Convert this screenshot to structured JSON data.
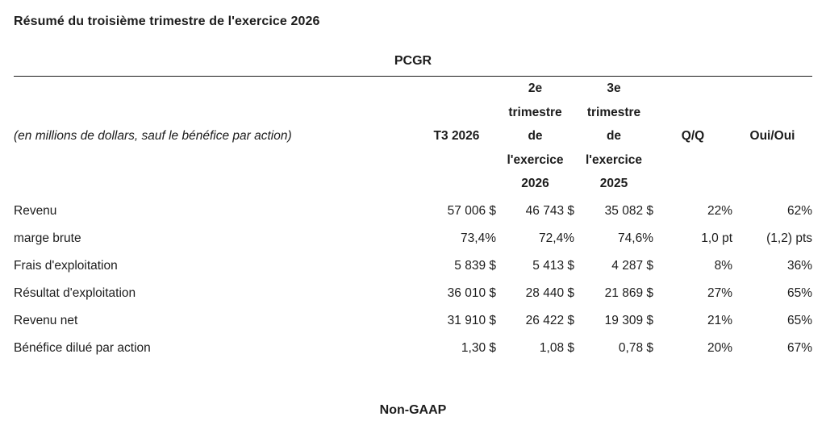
{
  "page": {
    "title": "Résumé du troisième trimestre de l'exercice 2026",
    "gaap_section_label": "PCGR",
    "non_gaap_section_label": "Non-GAAP"
  },
  "table": {
    "row_header_note": "(en millions de dollars, sauf le bénéfice par action)",
    "columns": [
      "T3 2026",
      "2e\ntrimestre\nde\nl'exercice\n2026",
      "3e\ntrimestre\nde\nl'exercice\n2025",
      "Q/Q",
      "Oui/Oui"
    ],
    "rows": [
      {
        "label": "Revenu",
        "values": [
          "57 006 $",
          "46 743 $",
          "35 082 $",
          "22%",
          "62%"
        ]
      },
      {
        "label": "marge brute",
        "values": [
          "73,4%",
          "72,4%",
          "74,6%",
          "1,0 pt",
          "(1,2) pts"
        ]
      },
      {
        "label": "Frais d'exploitation",
        "values": [
          "5 839 $",
          "5 413 $",
          "4 287 $",
          "8%",
          "36%"
        ]
      },
      {
        "label": "Résultat d'exploitation",
        "values": [
          "36 010 $",
          "28 440 $",
          "21 869 $",
          "27%",
          "65%"
        ]
      },
      {
        "label": "Revenu net",
        "values": [
          "31 910 $",
          "26 422 $",
          "19 309 $",
          "21%",
          "65%"
        ]
      },
      {
        "label": "Bénéfice dilué par action",
        "values": [
          "1,30 $",
          "1,08 $",
          "0,78 $",
          "20%",
          "67%"
        ]
      }
    ]
  },
  "colors": {
    "background": "#ffffff",
    "text": "#1c1c1c",
    "rule": "#1a1a1a"
  }
}
